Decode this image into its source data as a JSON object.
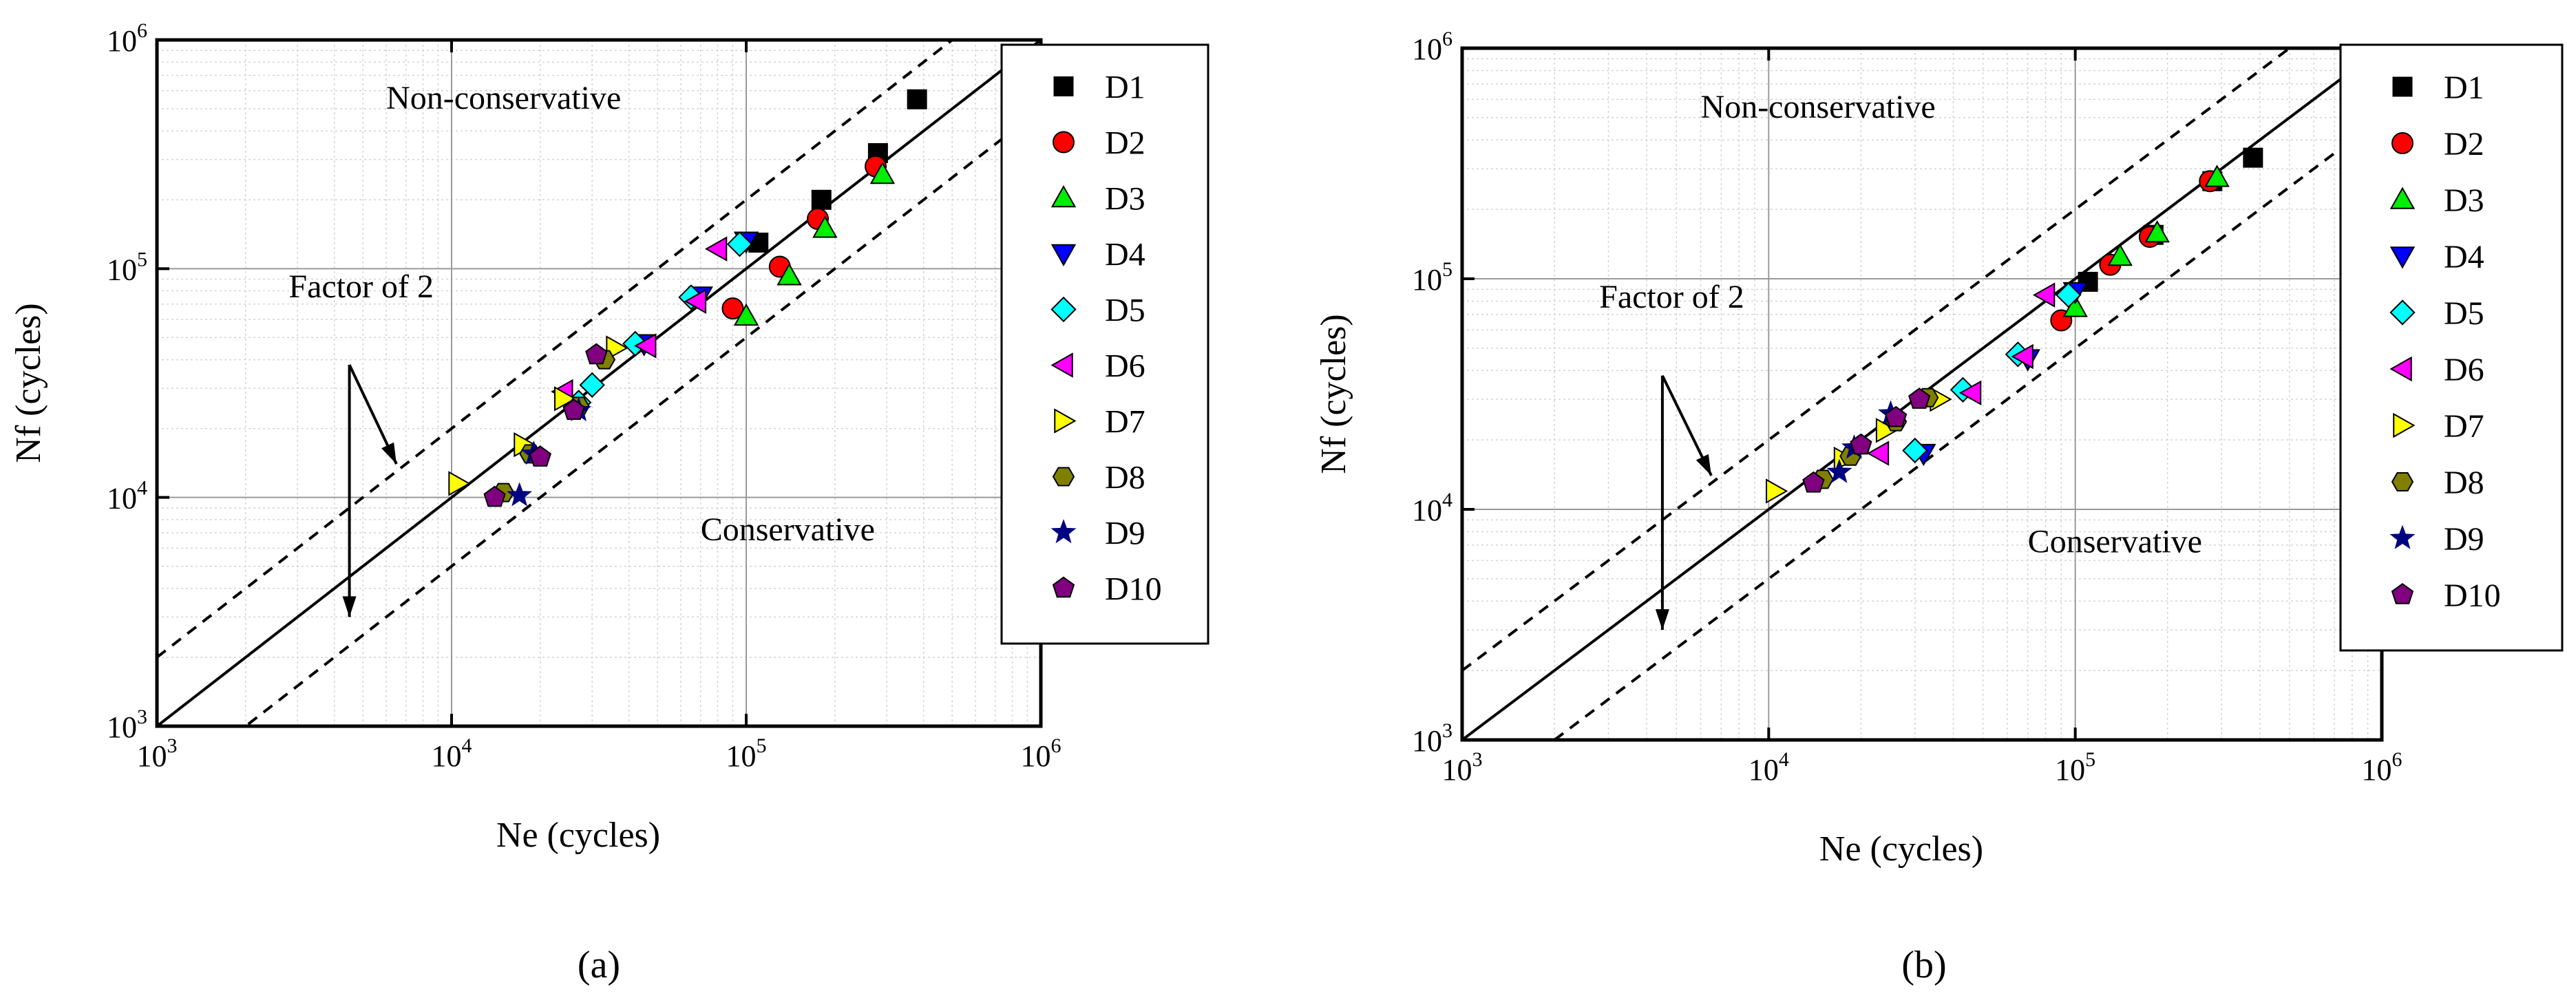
{
  "figure": {
    "panels": [
      {
        "caption": "(a)",
        "caption_letter": "a"
      },
      {
        "caption": "(b)",
        "caption_letter": "b"
      }
    ]
  },
  "colors": {
    "D1": "#000000",
    "D2": "#ff0000",
    "D3": "#00ee00",
    "D4": "#0000ff",
    "D5": "#00ffff",
    "D6": "#ff00ff",
    "D7": "#ffff00",
    "D8": "#808000",
    "D9": "#000080",
    "D10": "#800080"
  },
  "chart_data": [
    {
      "type": "scatter",
      "panel": "a",
      "xscale": "log",
      "yscale": "log",
      "xlim": [
        1000,
        1000000
      ],
      "ylim": [
        1000,
        1000000
      ],
      "xlabel": "Ne (cycles)",
      "ylabel": "Nf (cycles)",
      "xticks": [
        "10^3",
        "10^4",
        "10^5",
        "10^6"
      ],
      "yticks": [
        "10^3",
        "10^4",
        "10^5",
        "10^6"
      ],
      "grid": true,
      "annotations": {
        "upper_region": "Non-conservative",
        "lower_region": "Conservative",
        "factor_label": "Factor of 2"
      },
      "reference_lines": [
        {
          "name": "perfect agreement",
          "style": "solid",
          "ratio": 1
        },
        {
          "name": "upper factor of 2",
          "style": "dashed",
          "ratio": 2
        },
        {
          "name": "lower factor of 2",
          "style": "dashed",
          "ratio": 0.5
        }
      ],
      "legend_position": "right",
      "series": [
        {
          "name": "D1",
          "marker": "square",
          "points": [
            [
              380000,
              550000
            ],
            [
              280000,
              320000
            ],
            [
              180000,
              200000
            ],
            [
              110000,
              130000
            ]
          ]
        },
        {
          "name": "D2",
          "marker": "circle",
          "points": [
            [
              275000,
              280000
            ],
            [
              175000,
              165000
            ],
            [
              130000,
              102000
            ],
            [
              90000,
              67000
            ]
          ]
        },
        {
          "name": "D3",
          "marker": "triangle-up",
          "points": [
            [
              290000,
              258000
            ],
            [
              185000,
              150000
            ],
            [
              140000,
              93000
            ],
            [
              100000,
              62000
            ]
          ]
        },
        {
          "name": "D4",
          "marker": "triangle-down",
          "points": [
            [
              100000,
              132000
            ],
            [
              70000,
              76000
            ],
            [
              45000,
              47000
            ]
          ]
        },
        {
          "name": "D5",
          "marker": "diamond",
          "points": [
            [
              95000,
              128000
            ],
            [
              65000,
              75000
            ],
            [
              42000,
              47000
            ],
            [
              30000,
              31000
            ],
            [
              27000,
              26000
            ]
          ]
        },
        {
          "name": "D6",
          "marker": "triangle-left",
          "points": [
            [
              80000,
              122000
            ],
            [
              68000,
              72000
            ],
            [
              46000,
              46000
            ],
            [
              24000,
              29000
            ]
          ]
        },
        {
          "name": "D7",
          "marker": "triangle-right",
          "points": [
            [
              10500,
              11500
            ],
            [
              17500,
              17000
            ],
            [
              24000,
              27000
            ],
            [
              36000,
              45000
            ]
          ]
        },
        {
          "name": "D8",
          "marker": "hexagon",
          "points": [
            [
              15000,
              10500
            ],
            [
              18500,
              15500
            ],
            [
              27000,
              25000
            ],
            [
              33000,
              40000
            ]
          ]
        },
        {
          "name": "D9",
          "marker": "star",
          "points": [
            [
              17000,
              10200
            ],
            [
              19000,
              15500
            ],
            [
              27000,
              24000
            ]
          ]
        },
        {
          "name": "D10",
          "marker": "pentagon",
          "points": [
            [
              14000,
              10000
            ],
            [
              20000,
              15000
            ],
            [
              26000,
              24000
            ],
            [
              31000,
              42000
            ]
          ]
        }
      ]
    },
    {
      "type": "scatter",
      "panel": "b",
      "xscale": "log",
      "yscale": "log",
      "xlim": [
        1000,
        1000000
      ],
      "ylim": [
        1000,
        1000000
      ],
      "xlabel": "Ne (cycles)",
      "ylabel": "Nf (cycles)",
      "xticks": [
        "10^3",
        "10^4",
        "10^5",
        "10^6"
      ],
      "yticks": [
        "10^3",
        "10^4",
        "10^5",
        "10^6"
      ],
      "grid": true,
      "annotations": {
        "upper_region": "Non-conservative",
        "lower_region": "Conservative",
        "factor_label": "Factor of 2"
      },
      "reference_lines": [
        {
          "name": "perfect agreement",
          "style": "solid",
          "ratio": 1
        },
        {
          "name": "upper factor of 2",
          "style": "dashed",
          "ratio": 2
        },
        {
          "name": "lower factor of 2",
          "style": "dashed",
          "ratio": 0.5
        }
      ],
      "legend_position": "right",
      "series": [
        {
          "name": "D1",
          "marker": "square",
          "points": [
            [
              380000,
              335000
            ],
            [
              280000,
              265000
            ],
            [
              180000,
              155000
            ],
            [
              110000,
              97000
            ]
          ]
        },
        {
          "name": "D2",
          "marker": "circle",
          "points": [
            [
              275000,
              265000
            ],
            [
              175000,
              152000
            ],
            [
              130000,
              115000
            ],
            [
              90000,
              66000
            ]
          ]
        },
        {
          "name": "D3",
          "marker": "triangle-up",
          "points": [
            [
              290000,
              275000
            ],
            [
              185000,
              158000
            ],
            [
              140000,
              125000
            ],
            [
              100000,
              75000
            ]
          ]
        },
        {
          "name": "D4",
          "marker": "triangle-down",
          "points": [
            [
              100000,
              88000
            ],
            [
              70000,
              45000
            ],
            [
              32000,
              17500
            ]
          ]
        },
        {
          "name": "D5",
          "marker": "diamond",
          "points": [
            [
              95000,
              85000
            ],
            [
              65000,
              47000
            ],
            [
              43000,
              33000
            ],
            [
              30000,
              18000
            ]
          ]
        },
        {
          "name": "D6",
          "marker": "triangle-left",
          "points": [
            [
              80000,
              85000
            ],
            [
              68000,
              46000
            ],
            [
              46000,
              32000
            ],
            [
              23000,
              17500
            ]
          ]
        },
        {
          "name": "D7",
          "marker": "triangle-right",
          "points": [
            [
              10500,
              12000
            ],
            [
              17500,
              16500
            ],
            [
              24000,
              22000
            ],
            [
              36000,
              30000
            ]
          ]
        },
        {
          "name": "D8",
          "marker": "hexagon",
          "points": [
            [
              15000,
              13500
            ],
            [
              18500,
              17000
            ],
            [
              26000,
              24000
            ],
            [
              33000,
              30500
            ]
          ]
        },
        {
          "name": "D9",
          "marker": "star",
          "points": [
            [
              17000,
              14500
            ],
            [
              19000,
              18500
            ],
            [
              25000,
              26000
            ]
          ]
        },
        {
          "name": "D10",
          "marker": "pentagon",
          "points": [
            [
              14000,
              13000
            ],
            [
              20000,
              19000
            ],
            [
              26000,
              25000
            ],
            [
              31000,
              30000
            ]
          ]
        }
      ]
    }
  ]
}
